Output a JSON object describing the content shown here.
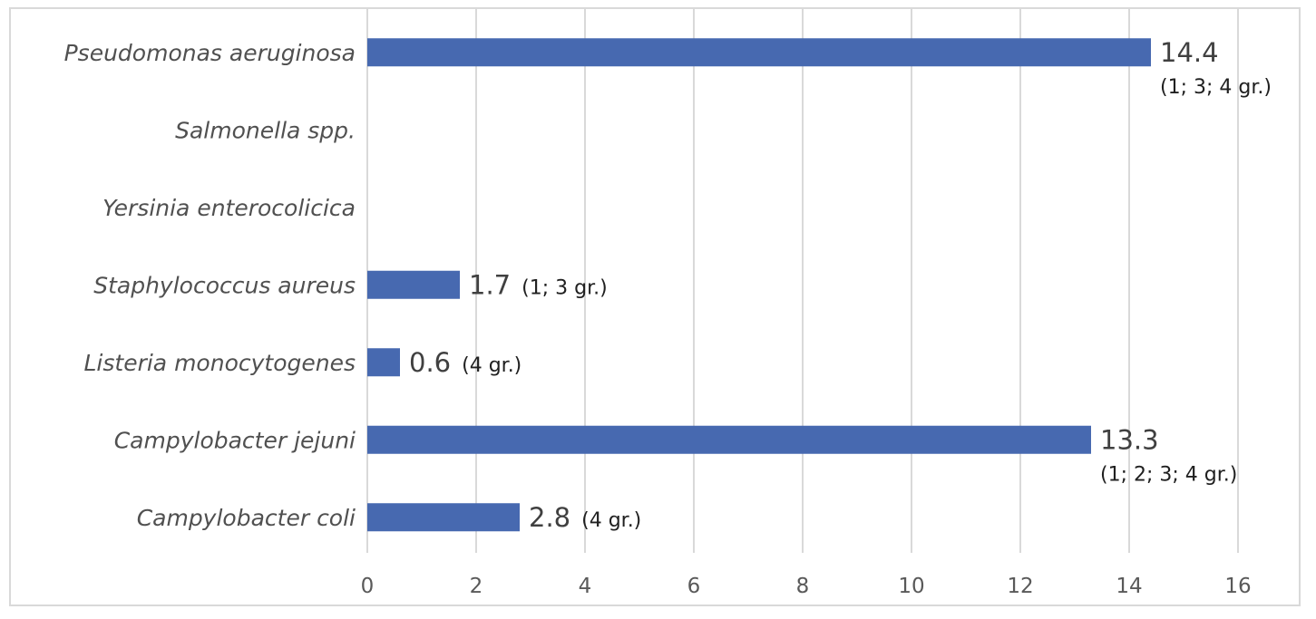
{
  "chart_data": {
    "type": "bar",
    "orientation": "horizontal",
    "categories": [
      "Pseudomonas aeruginosa",
      "Salmonella spp.",
      "Yersinia enterocolicica",
      "Staphylococcus aureus",
      "Listeria monocytogenes",
      "Campylobacter jejuni",
      "Campylobacter coli"
    ],
    "values": [
      14.4,
      0,
      0,
      1.7,
      0.6,
      13.3,
      2.8
    ],
    "value_labels": [
      "14.4",
      "",
      "",
      "1.7",
      "0.6",
      "13.3",
      "2.8"
    ],
    "annotations": [
      "(1; 3; 4 gr.)",
      "",
      "",
      "(1; 3 gr.)",
      "(4 gr.)",
      "(1; 2; 3; 4 gr.)",
      "(4 gr.)"
    ],
    "xlim": [
      0,
      16
    ],
    "xticks": [
      0,
      2,
      4,
      6,
      8,
      10,
      12,
      14,
      16
    ],
    "grid": true,
    "bar_color": "#4769b0",
    "title": "",
    "xlabel": "",
    "ylabel": ""
  }
}
